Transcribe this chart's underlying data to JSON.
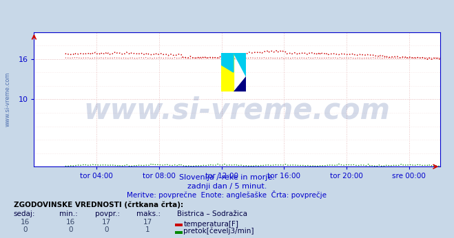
{
  "title": "Bistrica - Sodražica",
  "title_color": "#0000cc",
  "background_color": "#c8d8e8",
  "plot_bg_color": "#ffffff",
  "grid_color": "#e0b0b0",
  "grid_color2": "#e8d0d0",
  "x_labels": [
    "tor 04:00",
    "tor 08:00",
    "tor 12:00",
    "tor 16:00",
    "tor 20:00",
    "sre 00:00"
  ],
  "x_ticks_h": [
    4,
    8,
    12,
    16,
    20,
    24
  ],
  "x_min": 0,
  "x_max": 26,
  "y_min": 0,
  "y_max": 20,
  "y_ticks": [
    10,
    16
  ],
  "temp_color": "#cc0000",
  "flow_color": "#008800",
  "baseline_color": "#0000cc",
  "axis_color": "#0000cc",
  "tick_color": "#0000cc",
  "watermark_text": "www.si-vreme.com",
  "watermark_color": "#1a3a8a",
  "watermark_alpha": 0.18,
  "sub_text1": "Slovenija / reke in morje.",
  "sub_text2": "zadnji dan / 5 minut.",
  "sub_text3": "Meritve: povprečne  Enote: anglešaške  Črta: povprečje",
  "legend_title": "ZGODOVINSKE VREDNOSTI (črtkana črta):",
  "legend_col_headers": [
    "sedaj:",
    "min.:",
    "povpr.:",
    "maks.:",
    "Bistrica – Sodražica"
  ],
  "legend_row1_vals": [
    "16",
    "16",
    "17",
    "17"
  ],
  "legend_row1_label": "temperatura[F]",
  "legend_row2_vals": [
    "0",
    "0",
    "0",
    "1"
  ],
  "legend_row2_label": "pretok[čevelj3/min]",
  "temp_color_box": "#cc0000",
  "flow_color_box": "#008800",
  "ylabel_text": "www.si-vreme.com",
  "ylabel_color": "#4466aa",
  "temp_avg_value": 16.1,
  "temp_main_base": 16.7,
  "temp_main_peak": 17.0,
  "n_points": 289
}
